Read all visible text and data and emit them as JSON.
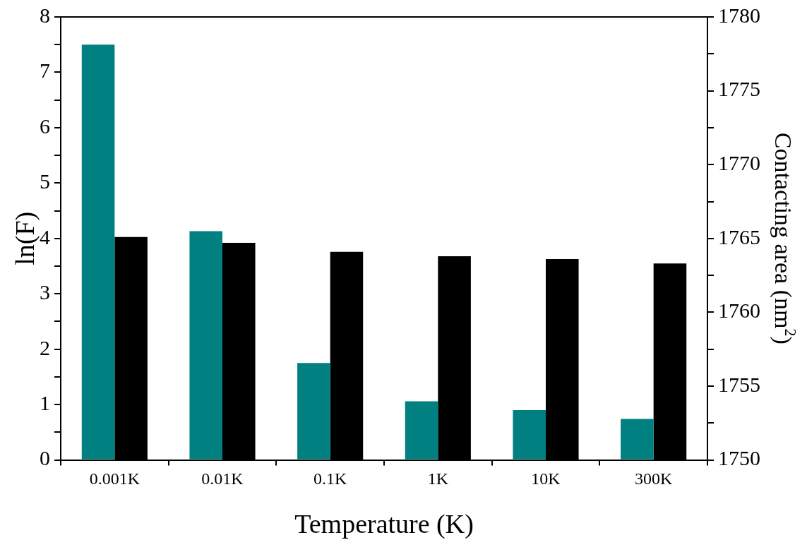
{
  "chart_data": {
    "type": "bar",
    "xlabel": "Temperature (K)",
    "ylabel": "ln(F)",
    "y2label": "Contacting area (nm$^{2}$)",
    "categories": [
      "0.001K",
      "0.01K",
      "0.1K",
      "1K",
      "10K",
      "300K"
    ],
    "series": [
      {
        "color": "#008080",
        "values": [
          7.5,
          4.13,
          1.75,
          1.06,
          0.9,
          0.74
        ]
      },
      {
        "color": "#000000",
        "axis": "y2",
        "values": [
          1765.1,
          1764.7,
          1764.1,
          1763.8,
          1763.6,
          1763.3
        ]
      }
    ],
    "ylim": [
      0,
      8
    ],
    "yticks": [
      0,
      {
        "value": 0.5,
        "label": null
      },
      1,
      {
        "value": 1.5,
        "label": null
      },
      2,
      {
        "value": 2.5,
        "label": null
      },
      3,
      {
        "value": 3.5,
        "label": null
      },
      4,
      {
        "value": 4.5,
        "label": null
      },
      5,
      {
        "value": 5.5,
        "label": null
      },
      6,
      {
        "value": 6.5,
        "label": null
      },
      7,
      {
        "value": 7.5,
        "label": null
      },
      8
    ],
    "y2lim": [
      1750,
      1780
    ],
    "y2ticks": [
      1750,
      {
        "value": 1752.5,
        "label": null
      },
      1755,
      {
        "value": 1757.5,
        "label": null
      },
      1760,
      {
        "value": 1762.5,
        "label": null
      },
      1765,
      {
        "value": 1767.5,
        "label": null
      },
      1770,
      {
        "value": 1772.5,
        "label": null
      },
      1775,
      {
        "value": 1777.5,
        "label": null
      },
      1780
    ],
    "grid": false,
    "legend": false
  }
}
